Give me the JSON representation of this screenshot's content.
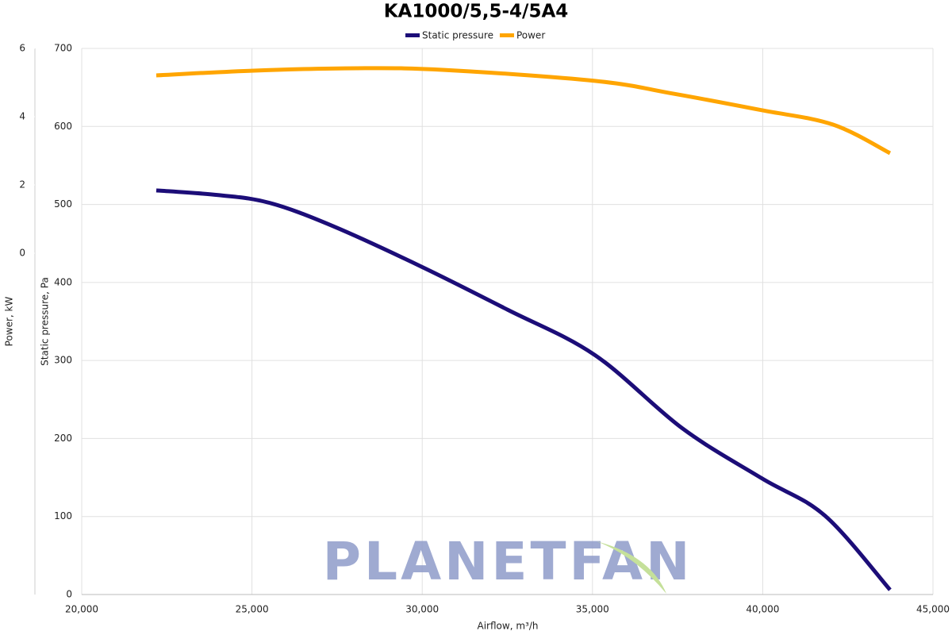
{
  "chart_data": {
    "type": "line",
    "title": "KA1000/5,5-4/5A4",
    "x_label": "Airflow, m³/h",
    "y_label": "Static pressure, Pa",
    "y2_label": "Power, kW",
    "watermark": "PLANETFAN",
    "xlim": [
      20000,
      45000
    ],
    "xticks": [
      {
        "value": 20000,
        "label": "20,000"
      },
      {
        "value": 25000,
        "label": "25,000"
      },
      {
        "value": 30000,
        "label": "30,000"
      },
      {
        "value": 35000,
        "label": "35,000"
      },
      {
        "value": 40000,
        "label": "40,000"
      },
      {
        "value": 45000,
        "label": "45,000"
      }
    ],
    "ylim": [
      0,
      700
    ],
    "yticks": [
      0,
      100,
      200,
      300,
      400,
      500,
      600,
      700
    ],
    "y2lim": [
      -10,
      6
    ],
    "y2ticks": [
      0,
      2,
      4,
      6
    ],
    "grid": true,
    "legend": "top",
    "series": [
      {
        "name": "Static pressure",
        "color": "#1c0d78",
        "x": [
          22190,
          24010,
          25520,
          27390,
          29990,
          32510,
          35070,
          37640,
          39970,
          41830,
          43740
        ],
        "values": [
          518,
          512,
          502,
          472,
          420,
          365,
          307,
          213,
          149,
          101,
          6
        ]
      },
      {
        "name": "Power",
        "color": "#ffa500",
        "axis": "y2",
        "x": [
          22190,
          25060,
          28080,
          30650,
          35070,
          37400,
          39970,
          42060,
          43740
        ],
        "values": [
          5.21,
          5.35,
          5.42,
          5.37,
          5.05,
          4.67,
          4.19,
          3.77,
          2.93
        ]
      }
    ]
  }
}
